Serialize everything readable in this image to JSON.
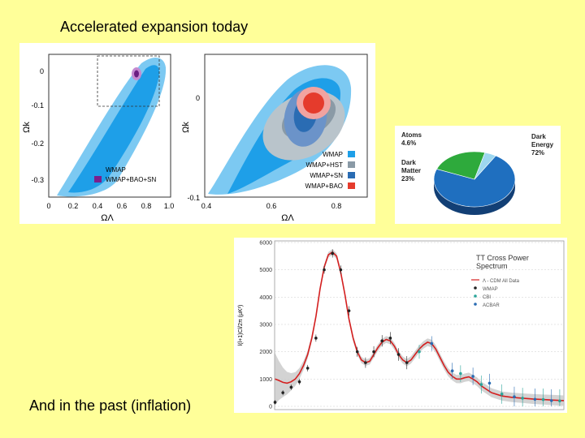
{
  "slide": {
    "title": "Accelerated expansion today",
    "caption": "And in the past (inflation)"
  },
  "contour_left": {
    "y_ticks": [
      "0",
      "-0.1",
      "-0.2",
      "-0.3"
    ],
    "x_ticks": [
      "0",
      "0.2",
      "0.4",
      "0.6",
      "0.8",
      "1.0"
    ],
    "xlabel": "ΩΛ",
    "ylabel": "Ωk",
    "legend": [
      {
        "label": "WMAP",
        "color": "#1e9fe8"
      },
      {
        "label": "WMAP+BAO+SN",
        "color": "#7b1f8c"
      }
    ]
  },
  "contour_right": {
    "y_ticks": [
      "0",
      "-0.1"
    ],
    "x_ticks": [
      "0.4",
      "0.6",
      "0.8"
    ],
    "xlabel": "ΩΛ",
    "ylabel": "Ωk",
    "legend": [
      {
        "label": "WMAP",
        "color": "#1e9fe8"
      },
      {
        "label": "WMAP+HST",
        "color": "#8a9aa6"
      },
      {
        "label": "WMAP+SN",
        "color": "#2a6cb3"
      },
      {
        "label": "WMAP+BAO",
        "color": "#e53b2c"
      }
    ]
  },
  "chart_data": [
    {
      "type": "pie",
      "title": "",
      "slices": [
        {
          "label": "Dark Energy",
          "value": 72,
          "display": "72%",
          "color": "#1f6fbf"
        },
        {
          "label": "Dark Matter",
          "value": 23,
          "display": "23%",
          "color": "#2eaa3c"
        },
        {
          "label": "Atoms",
          "value": 4.6,
          "display": "4.6%",
          "color": "#9dd7ef"
        }
      ]
    },
    {
      "type": "line",
      "title": "TT Cross Power Spectrum",
      "title_lines": [
        "TT Cross Power",
        "Spectrum"
      ],
      "ylabel": "l(l+1)Cl/2π (μK²)",
      "xlabel": "",
      "ylim": [
        0,
        6000
      ],
      "xlim": [
        0,
        1400
      ],
      "y_ticks": [
        0,
        1000,
        2000,
        3000,
        4000,
        5000,
        6000
      ],
      "legend": [
        "Λ - CDM All Data",
        "WMAP",
        "CBI",
        "ACBAR"
      ],
      "model_curve": {
        "x": [
          2,
          20,
          40,
          60,
          80,
          100,
          120,
          140,
          160,
          180,
          200,
          220,
          240,
          260,
          280,
          300,
          320,
          340,
          360,
          380,
          400,
          420,
          440,
          460,
          480,
          500,
          520,
          540,
          560,
          580,
          600,
          620,
          640,
          660,
          680,
          700,
          720,
          740,
          760,
          780,
          800,
          820,
          840,
          860,
          880,
          900,
          920,
          940,
          960,
          980,
          1000,
          1050,
          1100,
          1150,
          1200,
          1250,
          1300,
          1350,
          1400
        ],
        "y": [
          1000,
          950,
          880,
          850,
          900,
          1000,
          1200,
          1500,
          1900,
          2500,
          3300,
          4300,
          5100,
          5550,
          5650,
          5500,
          4900,
          4100,
          3200,
          2500,
          2000,
          1700,
          1600,
          1650,
          1900,
          2150,
          2350,
          2450,
          2400,
          2200,
          1900,
          1700,
          1600,
          1700,
          1900,
          2100,
          2250,
          2350,
          2300,
          2100,
          1800,
          1500,
          1250,
          1100,
          1000,
          1000,
          1050,
          1080,
          1000,
          900,
          750,
          500,
          380,
          330,
          300,
          270,
          250,
          230,
          210
        ]
      },
      "series": [
        {
          "name": "WMAP",
          "x": [
            2,
            40,
            80,
            120,
            160,
            200,
            240,
            280,
            320,
            360,
            400,
            440,
            480,
            520,
            560,
            600,
            640
          ],
          "y": [
            150,
            500,
            700,
            900,
            1400,
            2500,
            5000,
            5600,
            5000,
            3500,
            2000,
            1600,
            2000,
            2400,
            2500,
            1900,
            1600
          ]
        },
        {
          "name": "CBI",
          "x": [
            700,
            900,
            1000,
            1100,
            1200,
            1300,
            1380
          ],
          "y": [
            2000,
            1200,
            800,
            450,
            300,
            250,
            200
          ]
        },
        {
          "name": "ACBAR",
          "x": [
            760,
            860,
            960,
            1040,
            1160,
            1260,
            1340
          ],
          "y": [
            2300,
            1300,
            1100,
            850,
            350,
            260,
            210
          ]
        }
      ]
    }
  ]
}
